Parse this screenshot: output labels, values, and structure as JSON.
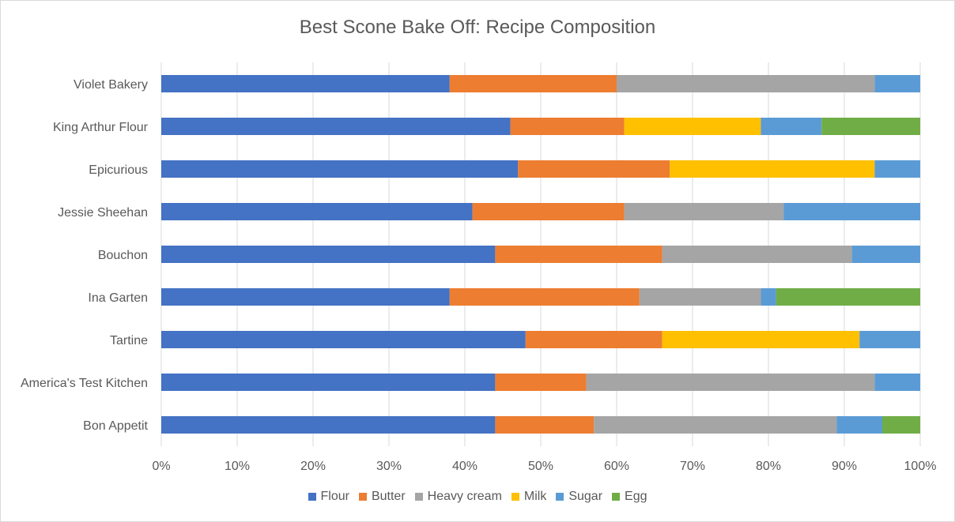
{
  "chart_data": {
    "type": "bar",
    "orientation": "horizontal",
    "stacked": "percent",
    "title": "Best Scone Bake Off: Recipe Composition",
    "xlabel": "",
    "ylabel": "",
    "xlim": [
      0,
      100
    ],
    "x_ticks": [
      "0%",
      "10%",
      "20%",
      "30%",
      "40%",
      "50%",
      "60%",
      "70%",
      "80%",
      "90%",
      "100%"
    ],
    "grid": "vertical",
    "legend_position": "bottom",
    "categories": [
      "Bon Appetit",
      "America's Test Kitchen",
      "Tartine",
      "Ina Garten",
      "Bouchon",
      "Jessie Sheehan",
      "Epicurious",
      "King Arthur Flour",
      "Violet Bakery"
    ],
    "series": [
      {
        "name": "Flour",
        "color": "#4472c4",
        "values": [
          44,
          44,
          48,
          38,
          44,
          41,
          47,
          46,
          38
        ]
      },
      {
        "name": "Butter",
        "color": "#ed7d31",
        "values": [
          13,
          12,
          18,
          25,
          22,
          20,
          20,
          15,
          22
        ]
      },
      {
        "name": "Heavy cream",
        "color": "#a5a5a5",
        "values": [
          32,
          38,
          0,
          16,
          25,
          21,
          0,
          0,
          34
        ]
      },
      {
        "name": "Milk",
        "color": "#ffc000",
        "values": [
          0,
          0,
          26,
          0,
          0,
          0,
          27,
          18,
          0
        ]
      },
      {
        "name": "Sugar",
        "color": "#5b9bd5",
        "values": [
          6,
          6,
          8,
          2,
          9,
          18,
          6,
          8,
          6
        ]
      },
      {
        "name": "Egg",
        "color": "#70ad47",
        "values": [
          5,
          0,
          0,
          19,
          0,
          0,
          0,
          13,
          0
        ]
      }
    ]
  }
}
